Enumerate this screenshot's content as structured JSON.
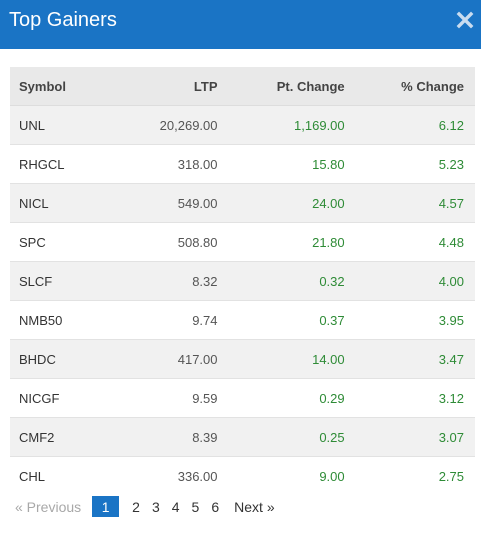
{
  "header": {
    "title": "Top Gainers",
    "close_icon": "close-icon"
  },
  "colors": {
    "accent": "#1a74c5",
    "positive": "#2e8b36",
    "muted": "#a8a8a8"
  },
  "table": {
    "columns": [
      "Symbol",
      "LTP",
      "Pt. Change",
      "% Change"
    ],
    "rows": [
      {
        "symbol": "UNL",
        "ltp": "20,269.00",
        "pt_change": "1,169.00",
        "pct_change": "6.12"
      },
      {
        "symbol": "RHGCL",
        "ltp": "318.00",
        "pt_change": "15.80",
        "pct_change": "5.23"
      },
      {
        "symbol": "NICL",
        "ltp": "549.00",
        "pt_change": "24.00",
        "pct_change": "4.57"
      },
      {
        "symbol": "SPC",
        "ltp": "508.80",
        "pt_change": "21.80",
        "pct_change": "4.48"
      },
      {
        "symbol": "SLCF",
        "ltp": "8.32",
        "pt_change": "0.32",
        "pct_change": "4.00"
      },
      {
        "symbol": "NMB50",
        "ltp": "9.74",
        "pt_change": "0.37",
        "pct_change": "3.95"
      },
      {
        "symbol": "BHDC",
        "ltp": "417.00",
        "pt_change": "14.00",
        "pct_change": "3.47"
      },
      {
        "symbol": "NICGF",
        "ltp": "9.59",
        "pt_change": "0.29",
        "pct_change": "3.12"
      },
      {
        "symbol": "CMF2",
        "ltp": "8.39",
        "pt_change": "0.25",
        "pct_change": "3.07"
      },
      {
        "symbol": "CHL",
        "ltp": "336.00",
        "pt_change": "9.00",
        "pct_change": "2.75"
      }
    ]
  },
  "pagination": {
    "previous_label": "« Previous",
    "pages": [
      "1",
      "2",
      "3",
      "4",
      "5",
      "6"
    ],
    "current_page": "1",
    "next_label": "Next »"
  }
}
